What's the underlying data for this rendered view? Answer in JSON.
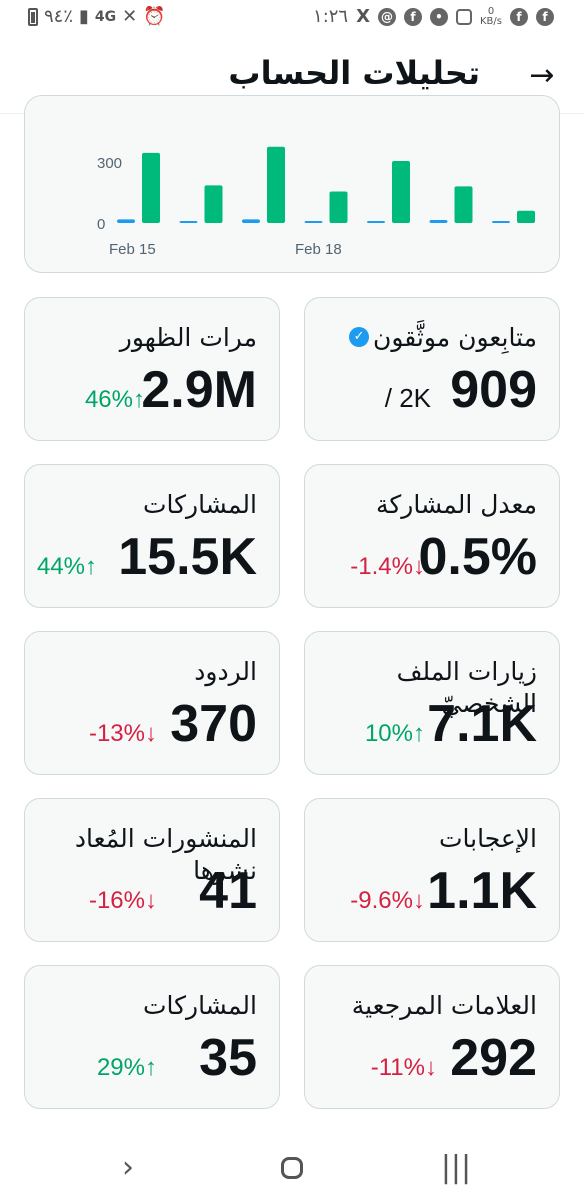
{
  "status_bar": {
    "time": "١:٢٦",
    "battery": "٩٤٪",
    "network": "4G",
    "data_speed": "0",
    "data_speed_unit": "KB/s"
  },
  "header": {
    "title": "تحليلات الحساب",
    "back_icon": "arrow-right-icon"
  },
  "chart_data": {
    "type": "bar",
    "yticks": [
      0,
      300
    ],
    "ylim": [
      0,
      380
    ],
    "xtick_labels": [
      "Feb 15",
      "Feb 18"
    ],
    "series": [
      {
        "color": "#1d9bf0",
        "values": [
          18,
          2,
          18,
          2,
          5,
          15,
          5
        ]
      },
      {
        "color": "#00ba7c",
        "values": [
          345,
          185,
          375,
          155,
          305,
          180,
          60
        ]
      }
    ]
  },
  "stats": [
    {
      "label": "متابِعون موثَّقون",
      "value": "909",
      "sub": "/ 2K",
      "verified_icon": "verified-badge-icon"
    },
    {
      "label": "مرات الظهور",
      "value": "2.9M",
      "change": "46%",
      "direction": "up"
    },
    {
      "label": "معدل المشاركة",
      "value": "0.5%",
      "change": "-1.4%",
      "direction": "down"
    },
    {
      "label": "المشاركات",
      "value": "15.5K",
      "change": "44%",
      "direction": "up"
    },
    {
      "label": "زيارات الملف الشخصيّ",
      "value": "7.1K",
      "change": "10%",
      "direction": "up"
    },
    {
      "label": "الردود",
      "value": "370",
      "change": "-13%",
      "direction": "down"
    },
    {
      "label": "الإعجابات",
      "value": "1.1K",
      "change": "-9.6%",
      "direction": "down"
    },
    {
      "label": "المنشورات المُعاد نشرها",
      "value": "41",
      "change": "-16%",
      "direction": "down"
    },
    {
      "label": "العلامات المرجعية",
      "value": "292",
      "change": "-11%",
      "direction": "down"
    },
    {
      "label": "المشاركات",
      "value": "35",
      "change": "29%",
      "direction": "up"
    }
  ],
  "arrows": {
    "up": "↑",
    "down": "↓"
  },
  "nav": {
    "back": "chevron-right-icon",
    "home": "home-icon",
    "recents": "recents-icon"
  },
  "colors": {
    "up": "#00a566",
    "down": "#d62042",
    "accent": "#1d9bf0"
  }
}
